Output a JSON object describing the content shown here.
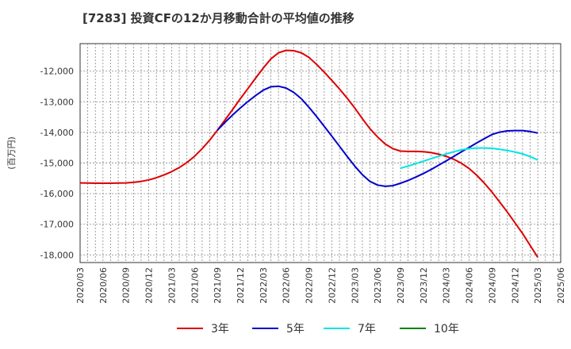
{
  "chart_data": {
    "type": "line",
    "title": "[7283]  投資CFの12か月移動合計の平均値の推移",
    "ylabel": "(百万円)",
    "ylim": [
      -18250,
      -11100
    ],
    "xlim": [
      "2020/03",
      "2025/06"
    ],
    "x_ticks": [
      "2020/03",
      "2020/06",
      "2020/09",
      "2020/12",
      "2021/03",
      "2021/06",
      "2021/09",
      "2021/12",
      "2022/03",
      "2022/06",
      "2022/09",
      "2022/12",
      "2023/03",
      "2023/06",
      "2023/09",
      "2023/12",
      "2024/03",
      "2024/06",
      "2024/09",
      "2024/12",
      "2025/03",
      "2025/06"
    ],
    "y_ticks": [
      -12000,
      -13000,
      -14000,
      -15000,
      -16000,
      -17000,
      -18000
    ],
    "y_tick_labels": [
      "-12,000",
      "-13,000",
      "-14,000",
      "-15,000",
      "-16,000",
      "-17,000",
      "-18,000"
    ],
    "grid": true,
    "legend_position": "bottom",
    "series": [
      {
        "name": "3年",
        "color": "#dd0000",
        "x": [
          "2020/03",
          "2020/04",
          "2020/05",
          "2020/06",
          "2020/07",
          "2020/08",
          "2020/09",
          "2020/10",
          "2020/11",
          "2020/12",
          "2021/01",
          "2021/02",
          "2021/03",
          "2021/04",
          "2021/05",
          "2021/06",
          "2021/07",
          "2021/08",
          "2021/09",
          "2021/10",
          "2021/11",
          "2021/12",
          "2022/01",
          "2022/02",
          "2022/03",
          "2022/04",
          "2022/05",
          "2022/06",
          "2022/07",
          "2022/08",
          "2022/09",
          "2022/10",
          "2022/11",
          "2022/12",
          "2023/01",
          "2023/02",
          "2023/03",
          "2023/04",
          "2023/05",
          "2023/06",
          "2023/07",
          "2023/08",
          "2023/09",
          "2023/10",
          "2023/11",
          "2023/12",
          "2024/01",
          "2024/02",
          "2024/03",
          "2024/04",
          "2024/05",
          "2024/06",
          "2024/07",
          "2024/08",
          "2024/09",
          "2024/10",
          "2024/11",
          "2024/12",
          "2025/01",
          "2025/02",
          "2025/03"
        ],
        "values": [
          -15650,
          -15655,
          -15660,
          -15660,
          -15660,
          -15655,
          -15650,
          -15630,
          -15600,
          -15550,
          -15480,
          -15390,
          -15280,
          -15150,
          -14980,
          -14780,
          -14530,
          -14250,
          -13930,
          -13590,
          -13250,
          -12900,
          -12570,
          -12230,
          -11900,
          -11600,
          -11400,
          -11320,
          -11330,
          -11400,
          -11550,
          -11780,
          -12030,
          -12300,
          -12580,
          -12880,
          -13200,
          -13550,
          -13880,
          -14150,
          -14380,
          -14530,
          -14610,
          -14620,
          -14620,
          -14630,
          -14660,
          -14710,
          -14780,
          -14880,
          -15010,
          -15180,
          -15400,
          -15660,
          -15950,
          -16270,
          -16600,
          -16950,
          -17300,
          -17690,
          -18080
        ]
      },
      {
        "name": "5年",
        "color": "#0000cc",
        "x": [
          "2021/09",
          "2021/10",
          "2021/11",
          "2021/12",
          "2022/01",
          "2022/02",
          "2022/03",
          "2022/04",
          "2022/05",
          "2022/06",
          "2022/07",
          "2022/08",
          "2022/09",
          "2022/10",
          "2022/11",
          "2022/12",
          "2023/01",
          "2023/02",
          "2023/03",
          "2023/04",
          "2023/05",
          "2023/06",
          "2023/07",
          "2023/08",
          "2023/09",
          "2023/10",
          "2023/11",
          "2023/12",
          "2024/01",
          "2024/02",
          "2024/03",
          "2024/04",
          "2024/05",
          "2024/06",
          "2024/07",
          "2024/08",
          "2024/09",
          "2024/10",
          "2024/11",
          "2024/12",
          "2025/01",
          "2025/02",
          "2025/03"
        ],
        "values": [
          -13930,
          -13670,
          -13430,
          -13200,
          -12990,
          -12800,
          -12620,
          -12510,
          -12490,
          -12550,
          -12690,
          -12900,
          -13180,
          -13480,
          -13800,
          -14120,
          -14450,
          -14780,
          -15100,
          -15380,
          -15600,
          -15720,
          -15760,
          -15740,
          -15660,
          -15570,
          -15460,
          -15340,
          -15210,
          -15070,
          -14930,
          -14780,
          -14630,
          -14490,
          -14340,
          -14200,
          -14070,
          -13990,
          -13950,
          -13940,
          -13940,
          -13970,
          -14020
        ]
      },
      {
        "name": "7年",
        "color": "#00e5e5",
        "x": [
          "2023/09",
          "2023/10",
          "2023/11",
          "2023/12",
          "2024/01",
          "2024/02",
          "2024/03",
          "2024/04",
          "2024/05",
          "2024/06",
          "2024/07",
          "2024/08",
          "2024/09",
          "2024/10",
          "2024/11",
          "2024/12",
          "2025/01",
          "2025/02",
          "2025/03"
        ],
        "values": [
          -15170,
          -15100,
          -15020,
          -14940,
          -14860,
          -14780,
          -14700,
          -14630,
          -14570,
          -14530,
          -14510,
          -14510,
          -14520,
          -14550,
          -14590,
          -14640,
          -14700,
          -14790,
          -14900
        ]
      },
      {
        "name": "10年",
        "color": "#008000",
        "x": [],
        "values": []
      }
    ]
  }
}
